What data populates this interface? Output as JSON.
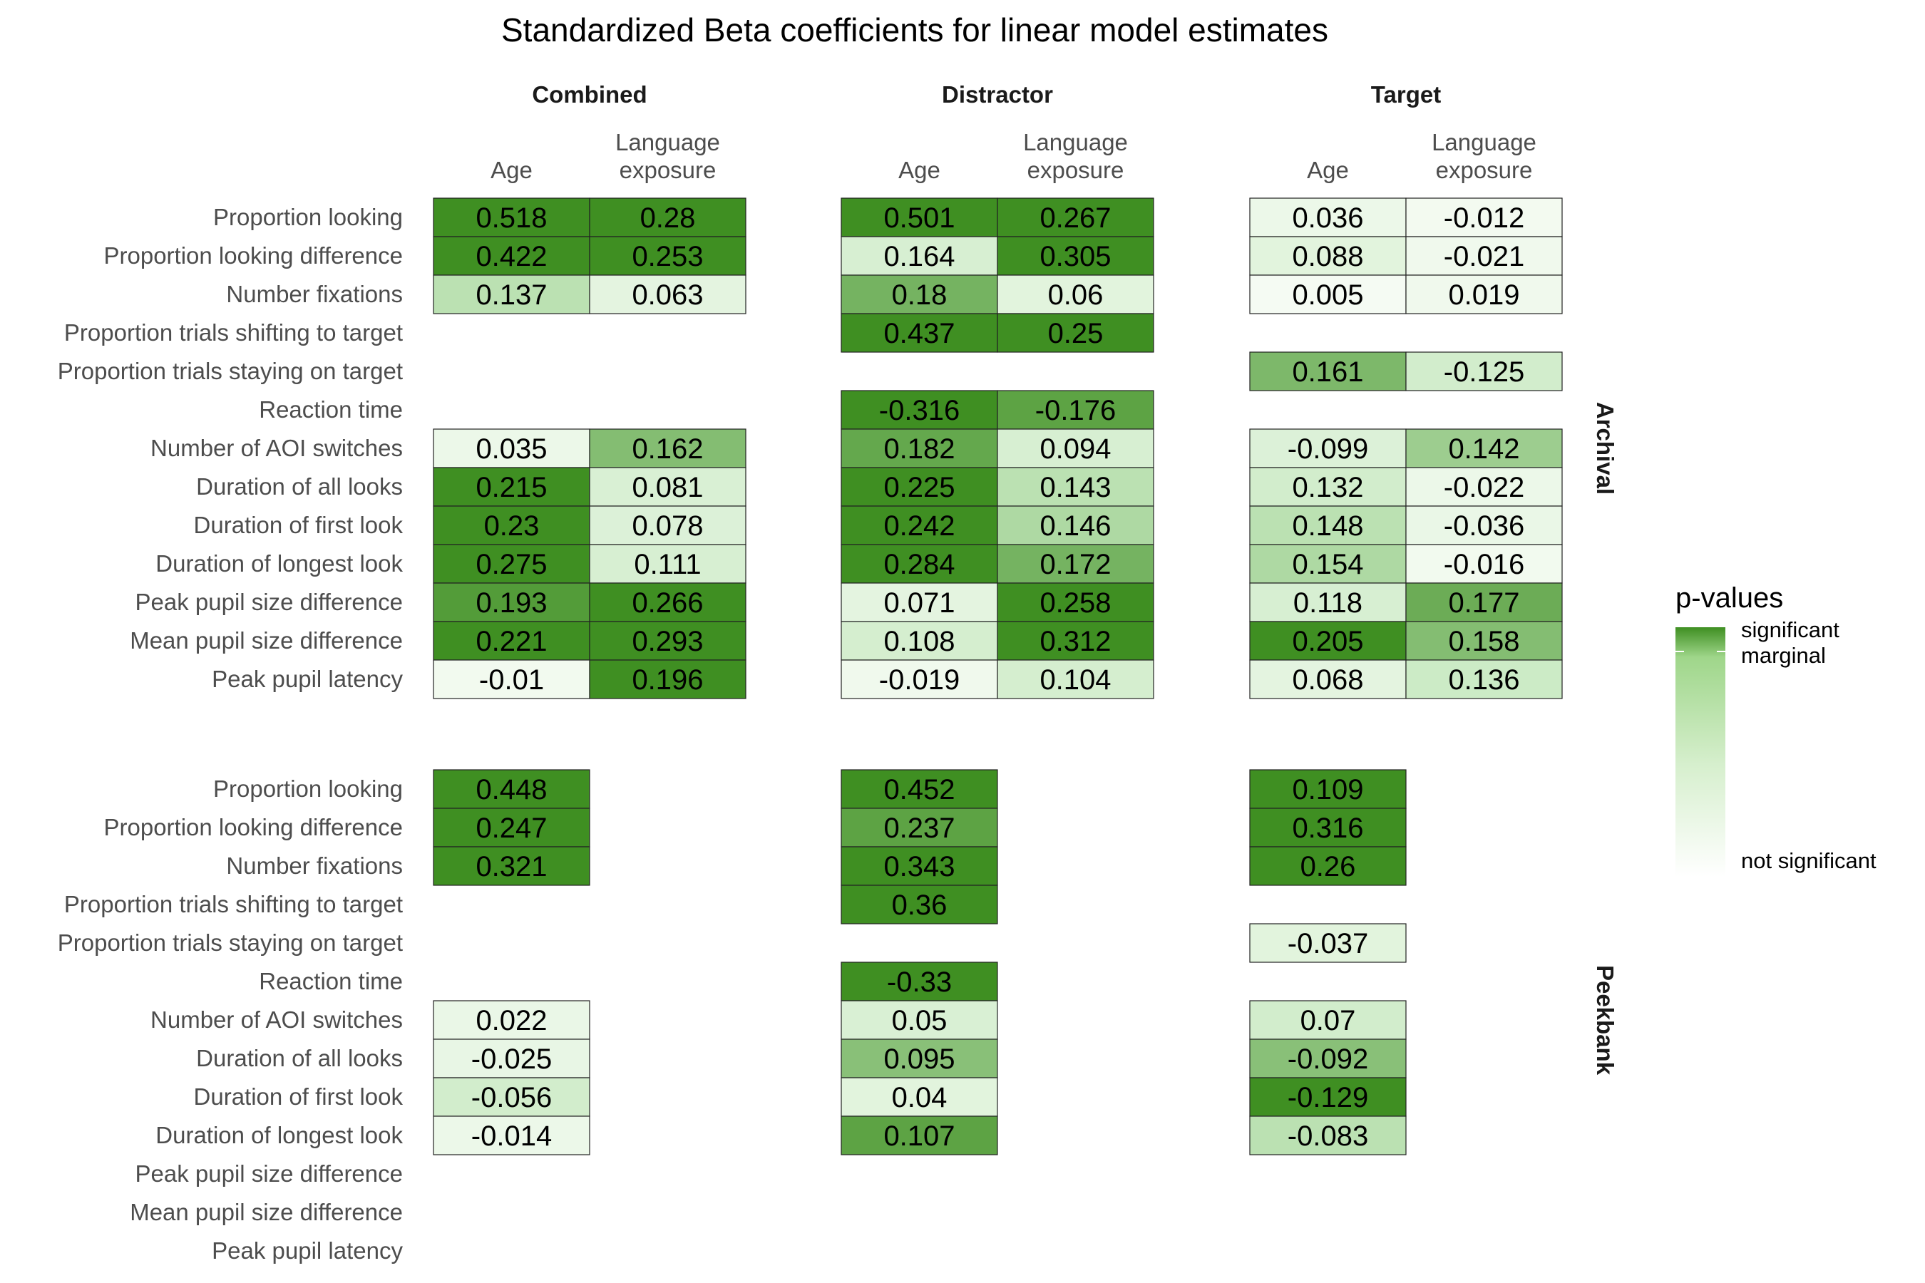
{
  "chart_data": {
    "type": "heatmap",
    "title": "Standardized Beta coefficients for linear model estimates",
    "panels": [
      "Combined",
      "Distractor",
      "Target"
    ],
    "columns": [
      "Age",
      "Language\nexposure"
    ],
    "row_groups": [
      "Archival",
      "Peekbank"
    ],
    "rows": [
      "Proportion looking",
      "Proportion looking difference",
      "Number fixations",
      "Proportion trials shifting to target",
      "Proportion trials staying on target",
      "Reaction time",
      "Number of AOI switches",
      "Duration of all looks",
      "Duration of first look",
      "Duration of longest look",
      "Peak pupil size difference",
      "Mean pupil size difference",
      "Peak pupil latency"
    ],
    "color_scale": {
      "low": "#ffffff",
      "high": "#3f8f22",
      "title": "p-values",
      "labels": [
        "significant",
        "marginal",
        "not significant"
      ]
    },
    "cells": {
      "Archival": {
        "Combined": [
          [
            0.518,
            0.28
          ],
          [
            0.422,
            0.253
          ],
          [
            0.137,
            0.063
          ],
          [
            null,
            null
          ],
          [
            null,
            null
          ],
          [
            null,
            null
          ],
          [
            0.035,
            0.162
          ],
          [
            0.215,
            0.081
          ],
          [
            0.23,
            0.078
          ],
          [
            0.275,
            0.111
          ],
          [
            0.193,
            0.266
          ],
          [
            0.221,
            0.293
          ],
          [
            -0.01,
            0.196
          ]
        ],
        "Distractor": [
          [
            0.501,
            0.267
          ],
          [
            0.164,
            0.305
          ],
          [
            0.18,
            0.06
          ],
          [
            0.437,
            0.25
          ],
          [
            null,
            null
          ],
          [
            -0.316,
            -0.176
          ],
          [
            0.182,
            0.094
          ],
          [
            0.225,
            0.143
          ],
          [
            0.242,
            0.146
          ],
          [
            0.284,
            0.172
          ],
          [
            0.071,
            0.258
          ],
          [
            0.108,
            0.312
          ],
          [
            -0.019,
            0.104
          ]
        ],
        "Target": [
          [
            0.036,
            -0.012
          ],
          [
            0.088,
            -0.021
          ],
          [
            0.005,
            0.019
          ],
          [
            null,
            null
          ],
          [
            0.161,
            -0.125
          ],
          [
            null,
            null
          ],
          [
            -0.099,
            0.142
          ],
          [
            0.132,
            -0.022
          ],
          [
            0.148,
            -0.036
          ],
          [
            0.154,
            -0.016
          ],
          [
            0.118,
            0.177
          ],
          [
            0.205,
            0.158
          ],
          [
            0.068,
            0.136
          ]
        ]
      },
      "Peekbank": {
        "Combined": [
          [
            0.448,
            null
          ],
          [
            0.247,
            null
          ],
          [
            0.321,
            null
          ],
          [
            null,
            null
          ],
          [
            null,
            null
          ],
          [
            null,
            null
          ],
          [
            0.022,
            null
          ],
          [
            -0.025,
            null
          ],
          [
            -0.056,
            null
          ],
          [
            -0.014,
            null
          ],
          [
            null,
            null
          ],
          [
            null,
            null
          ],
          [
            null,
            null
          ]
        ],
        "Distractor": [
          [
            0.452,
            null
          ],
          [
            0.237,
            null
          ],
          [
            0.343,
            null
          ],
          [
            0.36,
            null
          ],
          [
            null,
            null
          ],
          [
            -0.33,
            null
          ],
          [
            0.05,
            null
          ],
          [
            0.095,
            null
          ],
          [
            0.04,
            null
          ],
          [
            0.107,
            null
          ],
          [
            null,
            null
          ],
          [
            null,
            null
          ],
          [
            null,
            null
          ]
        ],
        "Target": [
          [
            0.109,
            null
          ],
          [
            0.316,
            null
          ],
          [
            0.26,
            null
          ],
          [
            null,
            null
          ],
          [
            -0.037,
            null
          ],
          [
            null,
            null
          ],
          [
            0.07,
            null
          ],
          [
            -0.092,
            null
          ],
          [
            -0.129,
            null
          ],
          [
            -0.083,
            null
          ],
          [
            null,
            null
          ],
          [
            null,
            null
          ],
          [
            null,
            null
          ]
        ]
      }
    },
    "fill_levels": {
      "Archival": {
        "Combined": [
          [
            1.0,
            1.0
          ],
          [
            1.0,
            1.0
          ],
          [
            0.5,
            0.18
          ],
          [
            null,
            null
          ],
          [
            null,
            null
          ],
          [
            null,
            null
          ],
          [
            0.1,
            0.72
          ],
          [
            1.0,
            0.28
          ],
          [
            1.0,
            0.25
          ],
          [
            1.0,
            0.3
          ],
          [
            0.92,
            1.0
          ],
          [
            1.0,
            1.0
          ],
          [
            0.05,
            1.0
          ]
        ],
        "Distractor": [
          [
            1.0,
            1.0
          ],
          [
            0.3,
            1.0
          ],
          [
            0.78,
            0.2
          ],
          [
            1.0,
            1.0
          ],
          [
            null,
            null
          ],
          [
            1.0,
            0.88
          ],
          [
            0.85,
            0.3
          ],
          [
            1.0,
            0.5
          ],
          [
            1.0,
            0.55
          ],
          [
            1.0,
            0.78
          ],
          [
            0.18,
            1.0
          ],
          [
            0.32,
            1.0
          ],
          [
            0.07,
            0.32
          ]
        ],
        "Target": [
          [
            0.1,
            0.04
          ],
          [
            0.2,
            0.07
          ],
          [
            0.02,
            0.07
          ],
          [
            null,
            null
          ],
          [
            0.75,
            0.35
          ],
          [
            null,
            null
          ],
          [
            0.25,
            0.62
          ],
          [
            0.35,
            0.1
          ],
          [
            0.5,
            0.12
          ],
          [
            0.55,
            0.05
          ],
          [
            0.3,
            0.82
          ],
          [
            1.0,
            0.72
          ],
          [
            0.18,
            0.4
          ]
        ]
      },
      "Peekbank": {
        "Combined": [
          [
            1.0,
            null
          ],
          [
            1.0,
            null
          ],
          [
            1.0,
            null
          ],
          [
            null,
            null
          ],
          [
            null,
            null
          ],
          [
            null,
            null
          ],
          [
            0.12,
            null
          ],
          [
            0.14,
            null
          ],
          [
            0.35,
            null
          ],
          [
            0.1,
            null
          ],
          [
            null,
            null
          ],
          [
            null,
            null
          ],
          [
            null,
            null
          ]
        ],
        "Distractor": [
          [
            1.0,
            null
          ],
          [
            0.88,
            null
          ],
          [
            1.0,
            null
          ],
          [
            1.0,
            null
          ],
          [
            null,
            null
          ],
          [
            1.0,
            null
          ],
          [
            0.28,
            null
          ],
          [
            0.7,
            null
          ],
          [
            0.2,
            null
          ],
          [
            0.88,
            null
          ],
          [
            null,
            null
          ],
          [
            null,
            null
          ],
          [
            null,
            null
          ]
        ],
        "Target": [
          [
            1.0,
            null
          ],
          [
            1.0,
            null
          ],
          [
            1.0,
            null
          ],
          [
            null,
            null
          ],
          [
            0.2,
            null
          ],
          [
            null,
            null
          ],
          [
            0.35,
            null
          ],
          [
            0.7,
            null
          ],
          [
            1.0,
            null
          ],
          [
            0.5,
            null
          ],
          [
            null,
            null
          ],
          [
            null,
            null
          ],
          [
            null,
            null
          ]
        ]
      }
    }
  }
}
